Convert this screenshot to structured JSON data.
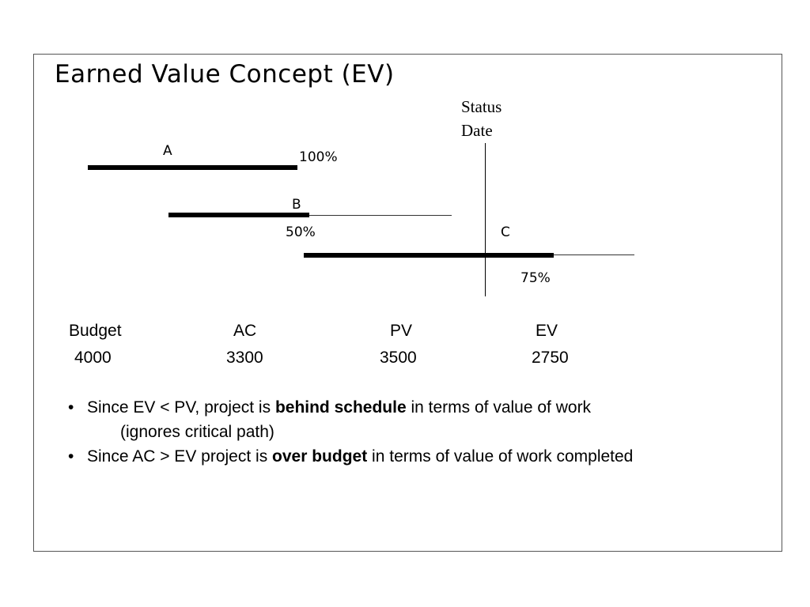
{
  "title": "Earned Value Concept (EV)",
  "status_date": {
    "line1": "Status",
    "line2": "Date"
  },
  "tasks": [
    {
      "name": "A",
      "percent_label": "100%"
    },
    {
      "name": "B",
      "percent_label": "50%"
    },
    {
      "name": "C",
      "percent_label": "75%"
    }
  ],
  "metrics": {
    "headers": [
      "Budget",
      "AC",
      "PV",
      "EV"
    ],
    "values": [
      "4000",
      "3300",
      "3500",
      "2750"
    ]
  },
  "bullets": [
    {
      "pre": "Since EV < PV, project is ",
      "bold": "behind schedule",
      "post": " in terms of value of work",
      "continuation": "(ignores critical path)"
    },
    {
      "pre": "Since AC > EV project is ",
      "bold": "over budget",
      "post": " in terms of value of work completed",
      "continuation": ""
    }
  ],
  "bullet_char": "•"
}
